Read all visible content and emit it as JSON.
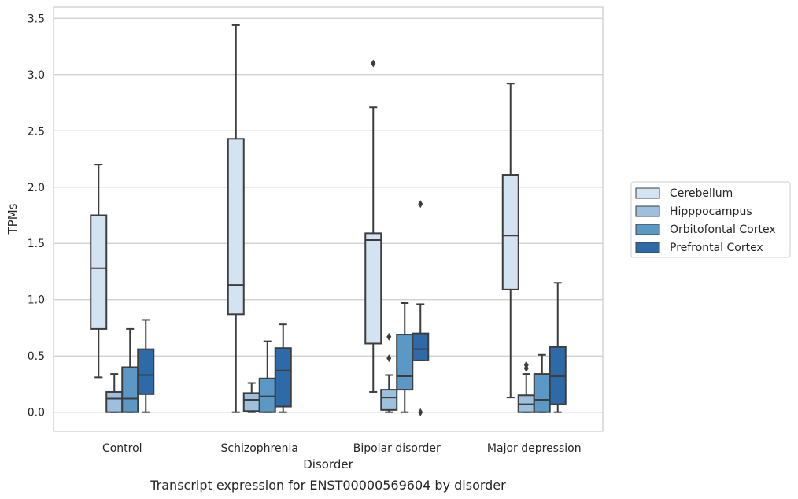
{
  "caption": "Transcript expression for ENST00000569604 by disorder",
  "chart_data": {
    "type": "box",
    "xlabel": "Disorder",
    "ylabel": "TPMs",
    "ylim": [
      -0.17,
      3.6
    ],
    "yticks": [
      "0.0",
      "0.5",
      "1.0",
      "1.5",
      "2.0",
      "2.5",
      "3.0",
      "3.5"
    ],
    "grid": true,
    "legend_position": "right",
    "categories": [
      "Control",
      "Schizophrenia",
      "Bipolar disorder",
      "Major depression"
    ],
    "series": [
      {
        "name": "Cerebellum",
        "color": "#d4e3f1",
        "boxes": [
          {
            "whislo": 0.31,
            "q1": 0.74,
            "med": 1.28,
            "q3": 1.75,
            "whishi": 2.2,
            "fliers": []
          },
          {
            "whislo": 0.0,
            "q1": 0.87,
            "med": 1.13,
            "q3": 2.43,
            "whishi": 3.44,
            "fliers": []
          },
          {
            "whislo": 0.18,
            "q1": 0.61,
            "med": 1.53,
            "q3": 1.59,
            "whishi": 2.71,
            "fliers": [
              3.1
            ]
          },
          {
            "whislo": 0.13,
            "q1": 1.09,
            "med": 1.57,
            "q3": 2.11,
            "whishi": 2.92,
            "fliers": []
          }
        ]
      },
      {
        "name": "Hipppocampus",
        "color": "#9cc0dd",
        "boxes": [
          {
            "whislo": 0.0,
            "q1": 0.0,
            "med": 0.12,
            "q3": 0.18,
            "whishi": 0.34,
            "fliers": []
          },
          {
            "whislo": 0.0,
            "q1": 0.01,
            "med": 0.11,
            "q3": 0.17,
            "whishi": 0.26,
            "fliers": []
          },
          {
            "whislo": 0.0,
            "q1": 0.02,
            "med": 0.13,
            "q3": 0.2,
            "whishi": 0.33,
            "fliers": [
              0.48,
              0.67
            ]
          },
          {
            "whislo": 0.0,
            "q1": 0.0,
            "med": 0.07,
            "q3": 0.15,
            "whishi": 0.34,
            "fliers": [
              0.39,
              0.42
            ]
          }
        ]
      },
      {
        "name": "Orbitofontal Cortex",
        "color": "#5b98c5",
        "boxes": [
          {
            "whislo": 0.0,
            "q1": 0.0,
            "med": 0.12,
            "q3": 0.4,
            "whishi": 0.74,
            "fliers": []
          },
          {
            "whislo": 0.0,
            "q1": 0.0,
            "med": 0.14,
            "q3": 0.3,
            "whishi": 0.63,
            "fliers": []
          },
          {
            "whislo": 0.0,
            "q1": 0.2,
            "med": 0.32,
            "q3": 0.69,
            "whishi": 0.97,
            "fliers": []
          },
          {
            "whislo": 0.0,
            "q1": 0.0,
            "med": 0.11,
            "q3": 0.34,
            "whishi": 0.51,
            "fliers": []
          }
        ]
      },
      {
        "name": "Prefrontal Cortex",
        "color": "#2e6aa8",
        "boxes": [
          {
            "whislo": 0.0,
            "q1": 0.16,
            "med": 0.33,
            "q3": 0.56,
            "whishi": 0.82,
            "fliers": []
          },
          {
            "whislo": 0.0,
            "q1": 0.05,
            "med": 0.37,
            "q3": 0.57,
            "whishi": 0.78,
            "fliers": []
          },
          {
            "whislo": 0.46,
            "q1": 0.46,
            "med": 0.56,
            "q3": 0.7,
            "whishi": 0.96,
            "fliers": [
              0.0,
              1.85
            ]
          },
          {
            "whislo": 0.0,
            "q1": 0.07,
            "med": 0.32,
            "q3": 0.58,
            "whishi": 1.15,
            "fliers": []
          }
        ]
      }
    ]
  }
}
